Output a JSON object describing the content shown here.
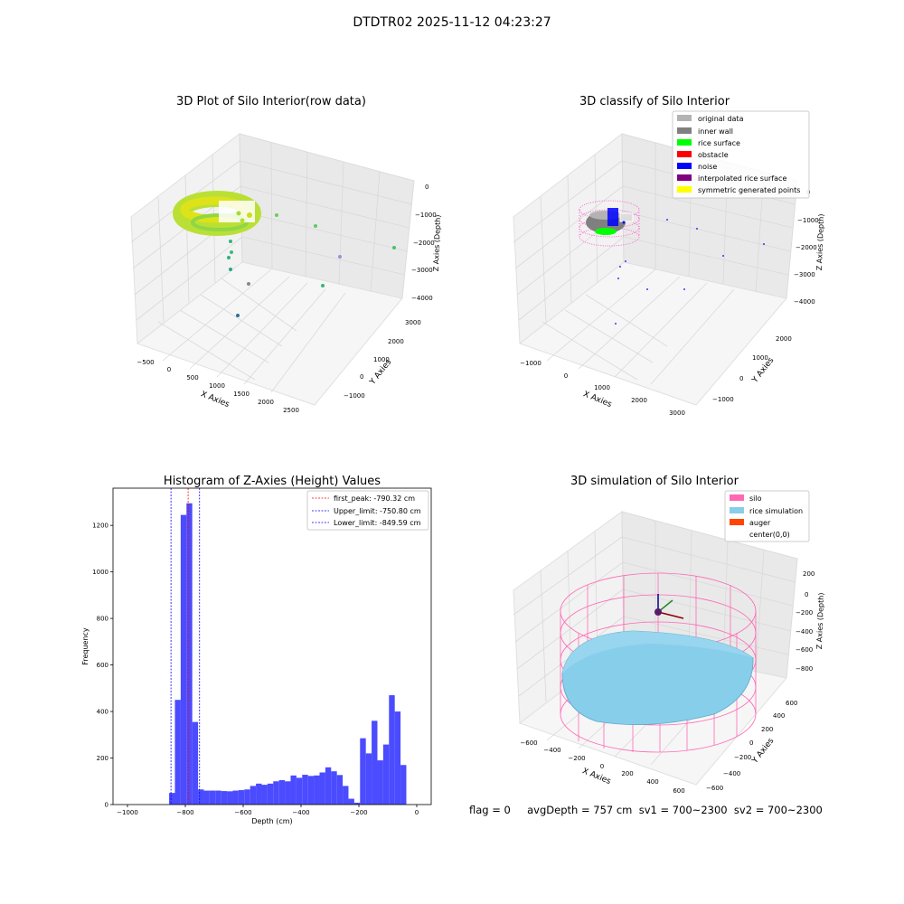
{
  "figure": {
    "suptitle": "DTDTR02 2025-11-12 04:23:27",
    "footer": "flag = 0     avgDepth = 757 cm  sv1 = 700~2300  sv2 = 700~2300"
  },
  "colors": {
    "hist_bar": "#4b4bff",
    "first_peak": "#ff0000",
    "limit_lines": "#0000ff",
    "original_data": "#b3b3b3",
    "inner_wall": "#808080",
    "rice_surface": "#00ff00",
    "obstacle": "#ff0000",
    "noise": "#0000ff",
    "interpolated": "#800080",
    "symmetric": "#ffff00",
    "silo": "#ff69b4",
    "rice_sim": "#87ceeb",
    "auger": "#ff4500"
  },
  "chart_data": [
    {
      "type": "scatter",
      "title": "3D Plot of Silo Interior(row data)",
      "xlabel": "X Axies",
      "ylabel": "Y Axies",
      "zlabel": "Z Axies (Depth)",
      "xlim": [
        -600,
        2700
      ],
      "ylim": [
        -1200,
        3200
      ],
      "zlim": [
        -4300,
        100
      ],
      "x_ticks": [
        "−500",
        "0",
        "500",
        "1000",
        "1500",
        "2000",
        "2500"
      ],
      "y_ticks": [
        "−1000",
        "0",
        "1000",
        "2000",
        "3000"
      ],
      "z_ticks": [
        "0",
        "−1000",
        "−2000",
        "−3000",
        "−4000"
      ],
      "grid": true
    },
    {
      "type": "scatter",
      "title": "3D classify of Silo Interior",
      "xlabel": "X Axies",
      "ylabel": "Y Axies",
      "zlabel": "Z Axies (Depth)",
      "xlim": [
        -1300,
        3200
      ],
      "ylim": [
        -1200,
        2600
      ],
      "zlim": [
        -4300,
        100
      ],
      "x_ticks": [
        "−1000",
        "0",
        "1000",
        "2000",
        "3000"
      ],
      "y_ticks": [
        "−1000",
        "0",
        "1000",
        "2000"
      ],
      "z_ticks": [
        "0",
        "−1000",
        "−2000",
        "−3000",
        "−4000"
      ],
      "legend": [
        "original data",
        "inner wall",
        "rice surface",
        "obstacle",
        "noise",
        "interpolated rice surface",
        "symmetric generated points"
      ],
      "legend_position": "top-right",
      "grid": true
    },
    {
      "type": "bar",
      "title": "Histogram of Z-Axies (Height) Values",
      "xlabel": "Depth (cm)",
      "ylabel": "Frequency",
      "xlim": [
        -1050,
        50
      ],
      "ylim": [
        0,
        1360
      ],
      "x_ticks": [
        -1000,
        -800,
        -600,
        -400,
        -200,
        0
      ],
      "x_tick_labels": [
        "−1000",
        "−800",
        "−600",
        "−400",
        "−200",
        "0"
      ],
      "y_ticks": [
        0,
        200,
        400,
        600,
        800,
        1000,
        1200
      ],
      "bin_width": 20,
      "bins": [
        {
          "x": -856,
          "v": 50
        },
        {
          "x": -836,
          "v": 450
        },
        {
          "x": -816,
          "v": 1245
        },
        {
          "x": -796,
          "v": 1295
        },
        {
          "x": -776,
          "v": 355
        },
        {
          "x": -756,
          "v": 65
        },
        {
          "x": -736,
          "v": 60
        },
        {
          "x": -716,
          "v": 60
        },
        {
          "x": -696,
          "v": 60
        },
        {
          "x": -676,
          "v": 58
        },
        {
          "x": -656,
          "v": 57
        },
        {
          "x": -636,
          "v": 60
        },
        {
          "x": -616,
          "v": 62
        },
        {
          "x": -596,
          "v": 65
        },
        {
          "x": -576,
          "v": 80
        },
        {
          "x": -556,
          "v": 90
        },
        {
          "x": -536,
          "v": 85
        },
        {
          "x": -516,
          "v": 90
        },
        {
          "x": -496,
          "v": 100
        },
        {
          "x": -476,
          "v": 105
        },
        {
          "x": -456,
          "v": 100
        },
        {
          "x": -436,
          "v": 125
        },
        {
          "x": -416,
          "v": 115
        },
        {
          "x": -396,
          "v": 128
        },
        {
          "x": -376,
          "v": 123
        },
        {
          "x": -356,
          "v": 125
        },
        {
          "x": -336,
          "v": 138
        },
        {
          "x": -316,
          "v": 160
        },
        {
          "x": -296,
          "v": 143
        },
        {
          "x": -276,
          "v": 127
        },
        {
          "x": -256,
          "v": 80
        },
        {
          "x": -236,
          "v": 25
        },
        {
          "x": -216,
          "v": 8
        },
        {
          "x": -196,
          "v": 285
        },
        {
          "x": -176,
          "v": 220
        },
        {
          "x": -156,
          "v": 360
        },
        {
          "x": -136,
          "v": 190
        },
        {
          "x": -116,
          "v": 258
        },
        {
          "x": -96,
          "v": 470
        },
        {
          "x": -76,
          "v": 400
        },
        {
          "x": -56,
          "v": 170
        }
      ],
      "lines": [
        {
          "label": "first_peak: -790.32 cm",
          "value": -790.32,
          "color": "#ff0000"
        },
        {
          "label": "Upper_limit: -750.80 cm",
          "value": -750.8,
          "color": "#0000ff"
        },
        {
          "label": "Lower_limit: -849.59 cm",
          "value": -849.59,
          "color": "#0000ff"
        }
      ],
      "legend_position": "top-right"
    },
    {
      "type": "scatter",
      "title": "3D simulation of Silo Interior",
      "xlabel": "X Axies",
      "ylabel": "Y Axies",
      "zlabel": "Z Axies (Depth)",
      "xlim": [
        -700,
        700
      ],
      "ylim": [
        -700,
        700
      ],
      "zlim": [
        -950,
        350
      ],
      "x_ticks": [
        "−600",
        "−400",
        "−200",
        "0",
        "200",
        "400",
        "600"
      ],
      "y_ticks": [
        "−600",
        "−400",
        "−200",
        "0",
        "200",
        "400",
        "600"
      ],
      "z_ticks": [
        "200",
        "0",
        "−200",
        "−400",
        "−600",
        "−800"
      ],
      "legend": [
        "silo",
        "rice simulation",
        "auger",
        "center(0,0)"
      ],
      "legend_position": "top-right",
      "grid": true
    }
  ]
}
